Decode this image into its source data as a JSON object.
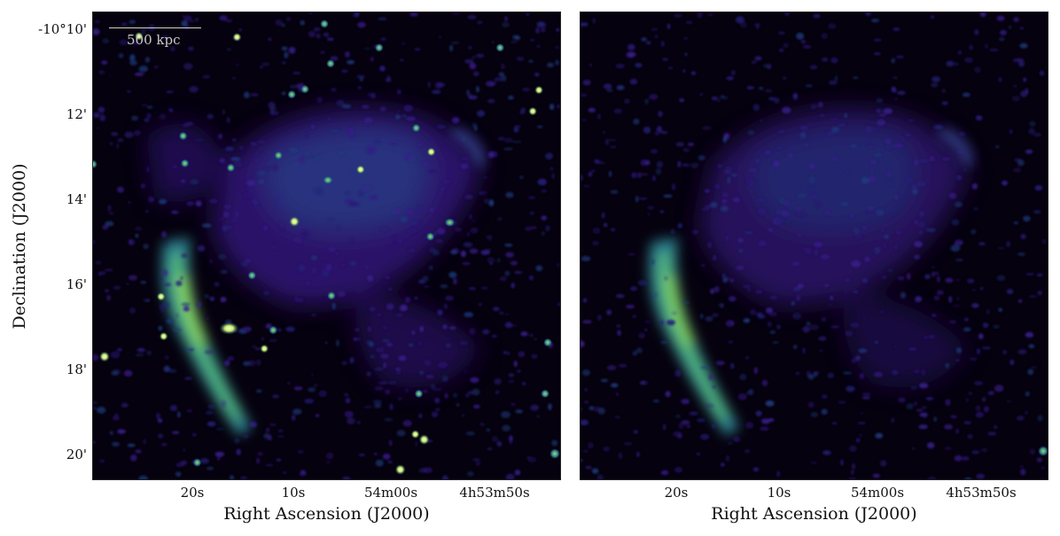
{
  "figure": {
    "left_panel": {
      "scalebar_label": "500 kpc",
      "y_ticks": [
        "-10°10'",
        "12'",
        "14'",
        "16'",
        "18'",
        "20'"
      ],
      "x_ticks": [
        "20s",
        "10s",
        "54m00s",
        "4h53m50s"
      ],
      "xlabel": "Right Ascension (J2000)",
      "ylabel": "Declination (J2000)"
    },
    "right_panel": {
      "x_ticks": [
        "20s",
        "10s",
        "54m00s",
        "4h53m50s"
      ],
      "xlabel": "Right Ascension (J2000)"
    }
  },
  "colors": {
    "background": "#06010e",
    "emission_faint": "#3b1a8a",
    "emission_mid": "#23627a",
    "emission_bright": "#6fcf6a",
    "point_source": "#f3f7c0"
  }
}
